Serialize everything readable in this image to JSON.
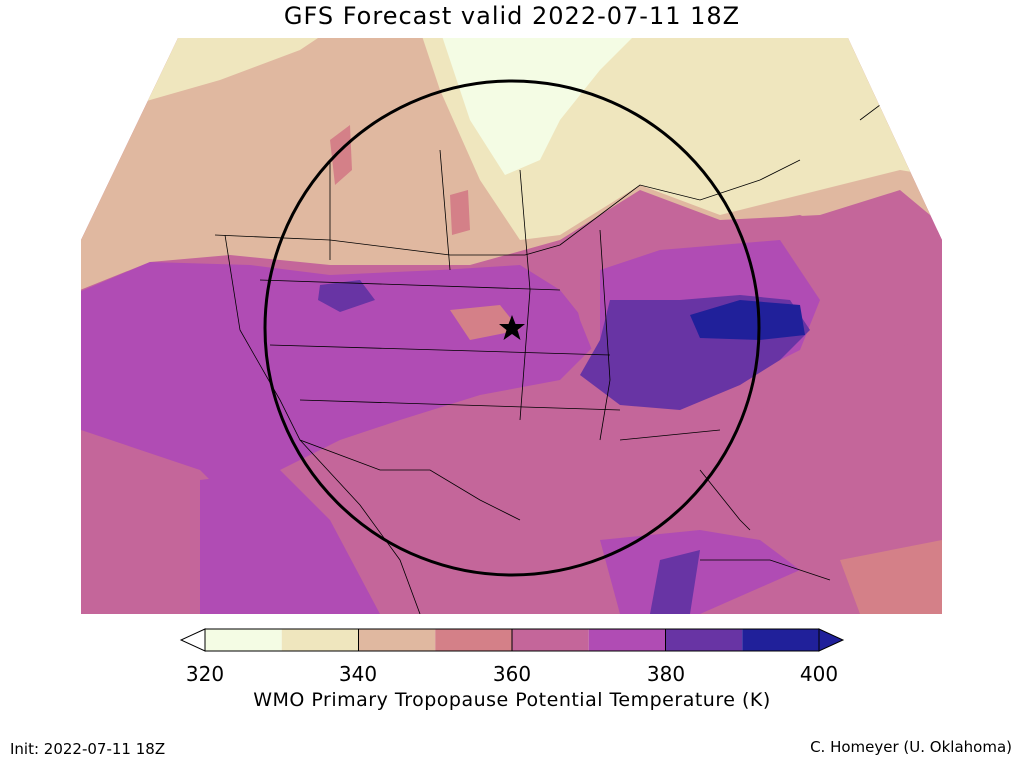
{
  "title": "GFS Forecast valid 2022-07-11 18Z",
  "colorbar": {
    "label": "WMO Primary Tropopause Potential Temperature (K)",
    "ticks": [
      "320",
      "340",
      "360",
      "380",
      "400"
    ],
    "colors": [
      "#f4fce4",
      "#efe6be",
      "#e0b8a0",
      "#d48088",
      "#c4669a",
      "#b04cb4",
      "#6834a4",
      "#20209a"
    ],
    "under_color": "#ffffff",
    "over_color": "#20209a"
  },
  "init": "Init: 2022-07-11 18Z",
  "credit": "C. Homeyer (U. Oklahoma)",
  "marker": "star-icon"
}
